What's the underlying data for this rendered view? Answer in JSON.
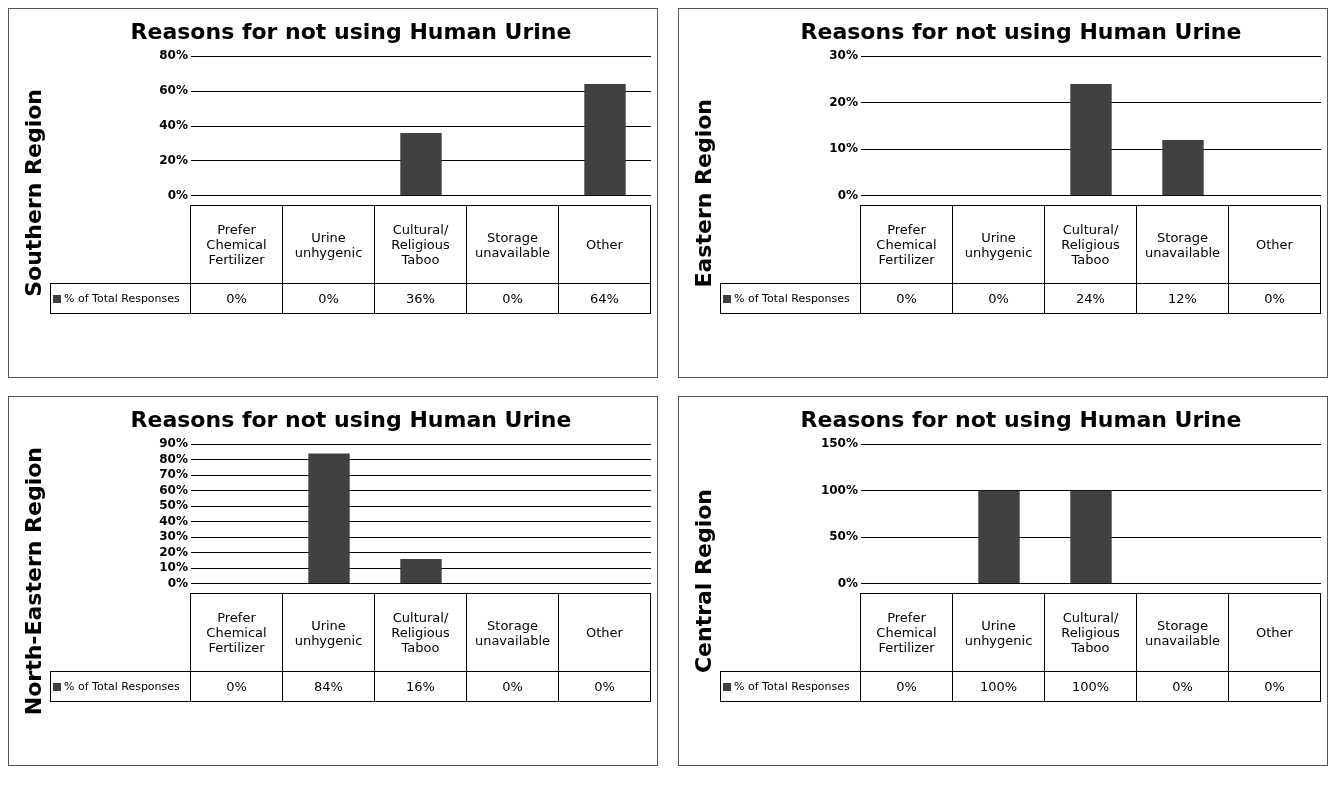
{
  "chart_data": [
    {
      "type": "bar",
      "title": "Reasons for not using Human Urine",
      "ylabel": "Southern Region",
      "categories": [
        "Prefer Chemical Fertilizer",
        "Urine unhygenic",
        "Cultural/ Religious Taboo",
        "Storage unavailable",
        "Other"
      ],
      "series": [
        {
          "name": "% of Total Responses",
          "color": "#404040",
          "values": [
            0,
            0,
            36,
            0,
            64
          ],
          "value_labels": [
            "0%",
            "0%",
            "36%",
            "0%",
            "64%"
          ]
        }
      ],
      "ylim": [
        0,
        80
      ],
      "yticks": [
        {
          "value": 0,
          "label": "0%"
        },
        {
          "value": 20,
          "label": "20%"
        },
        {
          "value": 40,
          "label": "40%"
        },
        {
          "value": 60,
          "label": "60%"
        },
        {
          "value": 80,
          "label": "80%"
        }
      ],
      "grid": "y",
      "legend": "bottom left"
    },
    {
      "type": "bar",
      "title": "Reasons for not using Human Urine",
      "ylabel": "Eastern Region",
      "categories": [
        "Prefer Chemical Fertilizer",
        "Urine unhygenic",
        "Cultural/ Religious Taboo",
        "Storage unavailable",
        "Other"
      ],
      "series": [
        {
          "name": "% of Total Responses",
          "color": "#404040",
          "values": [
            0,
            0,
            24,
            12,
            0
          ],
          "value_labels": [
            "0%",
            "0%",
            "24%",
            "12%",
            "0%"
          ]
        }
      ],
      "ylim": [
        0,
        30
      ],
      "yticks": [
        {
          "value": 0,
          "label": "0%"
        },
        {
          "value": 10,
          "label": "10%"
        },
        {
          "value": 20,
          "label": "20%"
        },
        {
          "value": 30,
          "label": "30%"
        }
      ],
      "grid": "y",
      "legend": "bottom left"
    },
    {
      "type": "bar",
      "title": "Reasons for not using Human Urine",
      "ylabel": "North-Eastern Region",
      "categories": [
        "Prefer Chemical Fertilizer",
        "Urine unhygenic",
        "Cultural/ Religious Taboo",
        "Storage unavailable",
        "Other"
      ],
      "series": [
        {
          "name": "% of Total Responses",
          "color": "#404040",
          "values": [
            0,
            84,
            16,
            0,
            0
          ],
          "value_labels": [
            "0%",
            "84%",
            "16%",
            "0%",
            "0%"
          ]
        }
      ],
      "ylim": [
        0,
        90
      ],
      "yticks": [
        {
          "value": 0,
          "label": "0%"
        },
        {
          "value": 10,
          "label": "10%"
        },
        {
          "value": 20,
          "label": "20%"
        },
        {
          "value": 30,
          "label": "30%"
        },
        {
          "value": 40,
          "label": "40%"
        },
        {
          "value": 50,
          "label": "50%"
        },
        {
          "value": 60,
          "label": "60%"
        },
        {
          "value": 70,
          "label": "70%"
        },
        {
          "value": 80,
          "label": "80%"
        },
        {
          "value": 90,
          "label": "90%"
        }
      ],
      "grid": "y",
      "legend": "bottom left"
    },
    {
      "type": "bar",
      "title": "Reasons for not using Human Urine",
      "ylabel": "Central Region",
      "categories": [
        "Prefer Chemical Fertilizer",
        "Urine unhygenic",
        "Cultural/ Religious Taboo",
        "Storage unavailable",
        "Other"
      ],
      "series": [
        {
          "name": "% of Total Responses",
          "color": "#404040",
          "values": [
            0,
            100,
            100,
            0,
            0
          ],
          "value_labels": [
            "0%",
            "100%",
            "100%",
            "0%",
            "0%"
          ]
        }
      ],
      "ylim": [
        0,
        150
      ],
      "yticks": [
        {
          "value": 0,
          "label": "0%"
        },
        {
          "value": 50,
          "label": "50%"
        },
        {
          "value": 100,
          "label": "100%"
        },
        {
          "value": 150,
          "label": "150%"
        }
      ],
      "grid": "y",
      "legend": "bottom left"
    }
  ]
}
